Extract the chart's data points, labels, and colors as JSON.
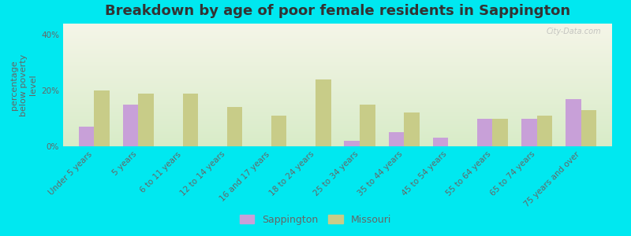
{
  "title": "Breakdown by age of poor female residents in Sappington",
  "ylabel": "percentage\nbelow poverty\nlevel",
  "categories": [
    "Under 5 years",
    "5 years",
    "6 to 11 years",
    "12 to 14 years",
    "16 and 17 years",
    "18 to 24 years",
    "25 to 34 years",
    "35 to 44 years",
    "45 to 54 years",
    "55 to 64 years",
    "65 to 74 years",
    "75 years and over"
  ],
  "sappington": [
    7.0,
    15.0,
    0.0,
    0.0,
    0.0,
    0.0,
    2.0,
    5.0,
    3.0,
    10.0,
    10.0,
    17.0
  ],
  "missouri": [
    20.0,
    19.0,
    19.0,
    14.0,
    11.0,
    24.0,
    15.0,
    12.0,
    0.0,
    10.0,
    11.0,
    13.0
  ],
  "sappington_color": "#c8a0d8",
  "missouri_color": "#c8cc88",
  "background_top": "#f5f5e8",
  "background_bottom": "#d8ecc8",
  "outer_background": "#00e8f0",
  "title_color": "#333333",
  "label_color": "#666666",
  "ylim": [
    0,
    44
  ],
  "yticks": [
    0,
    20,
    40
  ],
  "ytick_labels": [
    "0%",
    "20%",
    "40%"
  ],
  "bar_width": 0.35,
  "title_fontsize": 13,
  "axis_label_fontsize": 8,
  "tick_fontsize": 7.5,
  "legend_fontsize": 9
}
